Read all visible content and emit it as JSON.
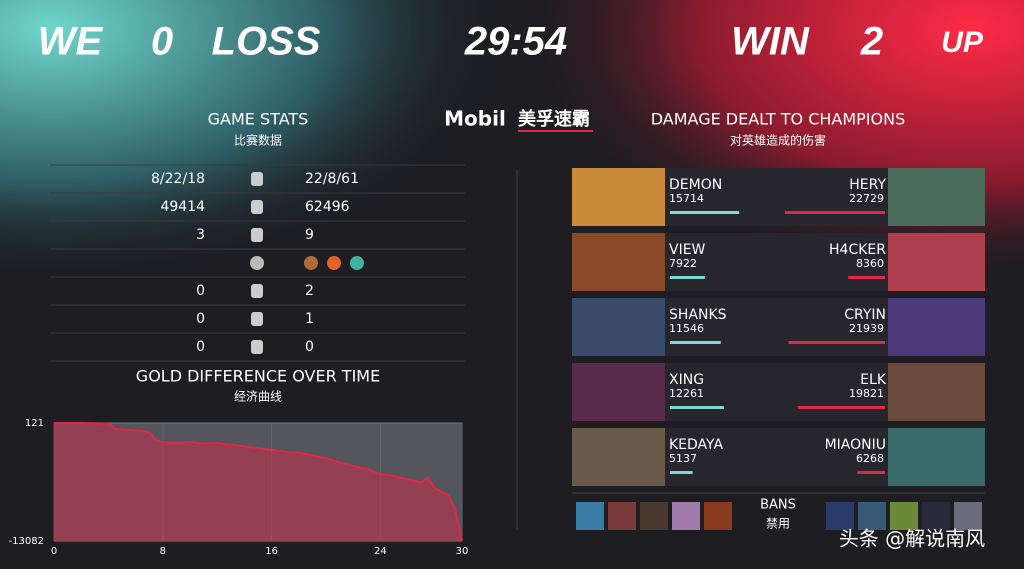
{
  "header": {
    "left_logo": "WE",
    "left_score": "0",
    "left_result": "LOSS",
    "timer": "29:54",
    "right_result": "WIN",
    "right_score": "2",
    "right_logo": "UP"
  },
  "sponsor": {
    "brand": "Mobil",
    "name": "美孚速霸"
  },
  "game_stats": {
    "title": "GAME STATS",
    "subtitle": "比赛数据",
    "rows": [
      {
        "left": "8/22/18",
        "right": "22/8/61"
      },
      {
        "left": "49414",
        "right": "62496"
      },
      {
        "left": "3",
        "right": "9"
      },
      {
        "left": "0",
        "right": "2"
      },
      {
        "left": "0",
        "right": "1"
      },
      {
        "left": "0",
        "right": "0"
      }
    ]
  },
  "damage": {
    "title": "DAMAGE DEALT TO CHAMPIONS",
    "subtitle": "对英雄造成的伤害",
    "rows": [
      {
        "left_name": "DEMON",
        "left_value": 15714,
        "right_name": "HERY",
        "right_value": 22729
      },
      {
        "left_name": "VIEW",
        "left_value": 7922,
        "right_name": "H4CKER",
        "right_value": 8360
      },
      {
        "left_name": "SHANKS",
        "left_value": 11546,
        "right_name": "CRYIN",
        "right_value": 21939
      },
      {
        "left_name": "XING",
        "left_value": 12261,
        "right_name": "ELK",
        "right_value": 19821
      },
      {
        "left_name": "KEDAYA",
        "left_value": 5137,
        "right_name": "MIAONIU",
        "right_value": 6268
      }
    ]
  },
  "bans": {
    "title": "BANS",
    "subtitle": "禁用"
  },
  "watermark": "头条 @解说南风",
  "chart_data": {
    "type": "area",
    "title": "GOLD DIFFERENCE OVER TIME",
    "subtitle": "经济曲线",
    "color": "#e0284a",
    "x": [
      0,
      1,
      2,
      3,
      4,
      4.5,
      5,
      6,
      7,
      7.5,
      8,
      9,
      10,
      11,
      12,
      13,
      14,
      15,
      16,
      17,
      18,
      19,
      20,
      21,
      22,
      23,
      24,
      25,
      26,
      27,
      27.5,
      28,
      29,
      29.5,
      30
    ],
    "values": [
      121,
      121,
      121,
      100,
      50,
      -500,
      -600,
      -700,
      -900,
      -1800,
      -2000,
      -2100,
      -2000,
      -2200,
      -2100,
      -2300,
      -2500,
      -2700,
      -2900,
      -3100,
      -3200,
      -3500,
      -3800,
      -4300,
      -4700,
      -5000,
      -5600,
      -5800,
      -6200,
      -6500,
      -6000,
      -7200,
      -8000,
      -9500,
      -13082
    ],
    "xlim": [
      0,
      30
    ],
    "xticks": [
      0,
      8,
      16,
      24,
      30
    ],
    "ylim": [
      -13082,
      121
    ],
    "yticks": [
      -13082,
      121
    ]
  }
}
